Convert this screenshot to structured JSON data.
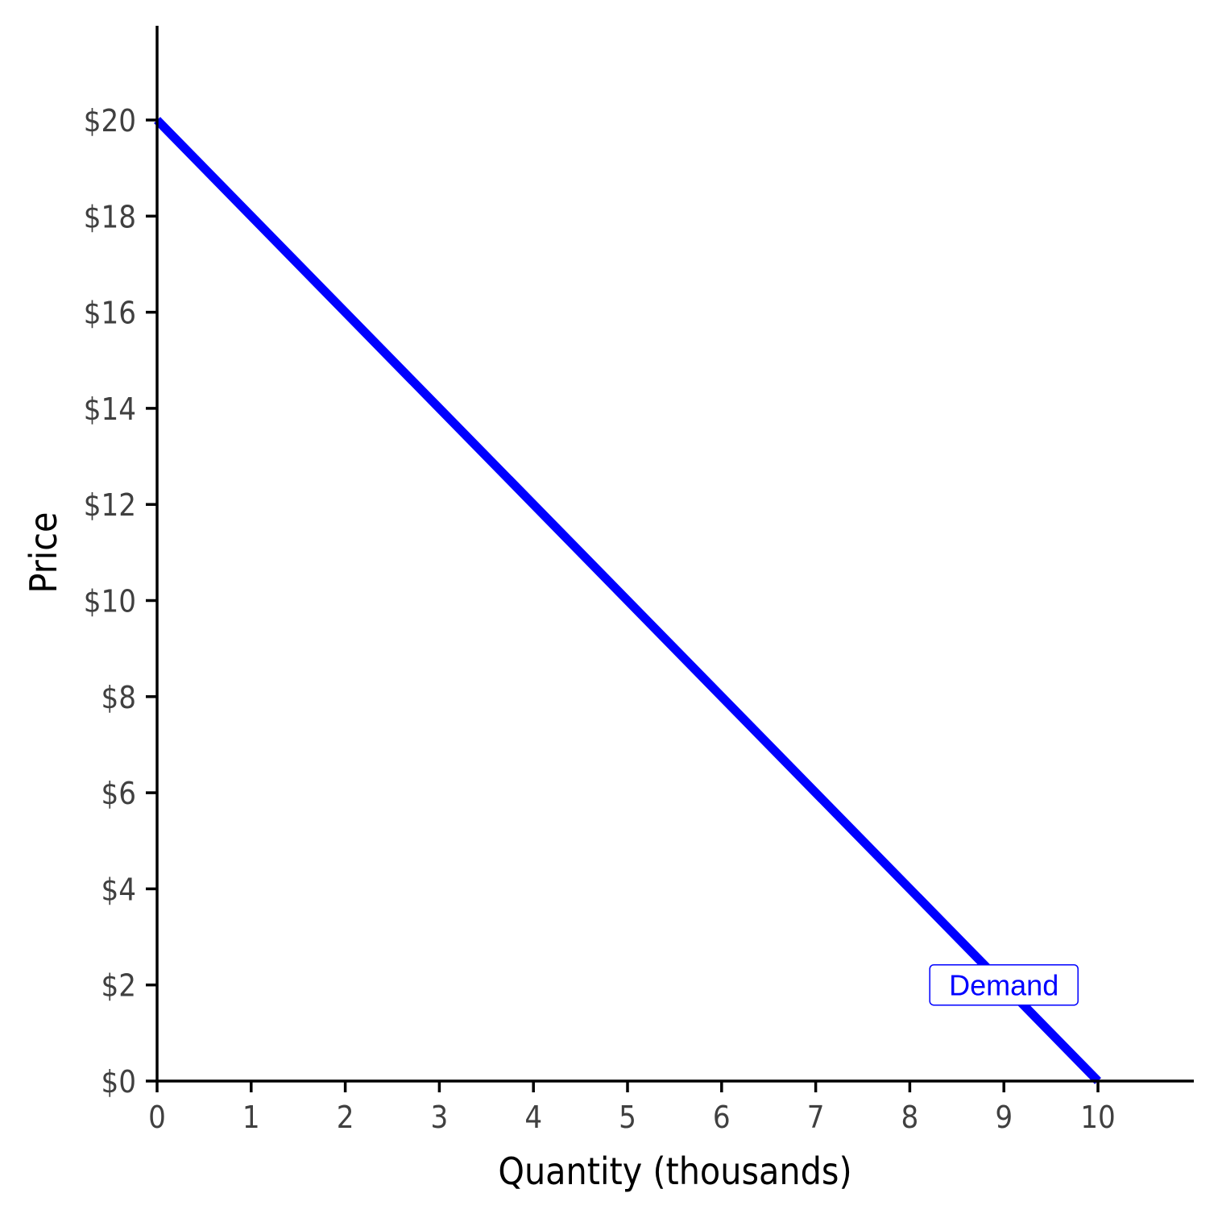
{
  "chart_data": {
    "type": "line",
    "xlabel": "Quantity (thousands)",
    "ylabel": "Price",
    "xlim": [
      0,
      11
    ],
    "ylim": [
      0,
      22
    ],
    "x_ticks": [
      0,
      1,
      2,
      3,
      4,
      5,
      6,
      7,
      8,
      9,
      10
    ],
    "x_tick_labels": [
      "0",
      "1",
      "2",
      "3",
      "4",
      "5",
      "6",
      "7",
      "8",
      "9",
      "10"
    ],
    "y_ticks": [
      0,
      2,
      4,
      6,
      8,
      10,
      12,
      14,
      16,
      18,
      20
    ],
    "y_tick_labels": [
      "$0",
      "$2",
      "$4",
      "$6",
      "$8",
      "$10",
      "$12",
      "$14",
      "$16",
      "$18",
      "$20"
    ],
    "grid": false,
    "legend": "none",
    "series": [
      {
        "name": "Demand",
        "color": "#0000ff",
        "x": [
          0,
          10
        ],
        "y": [
          20,
          0
        ],
        "label": {
          "text": "Demand",
          "x": 9.0,
          "y": 2.0
        }
      }
    ]
  }
}
